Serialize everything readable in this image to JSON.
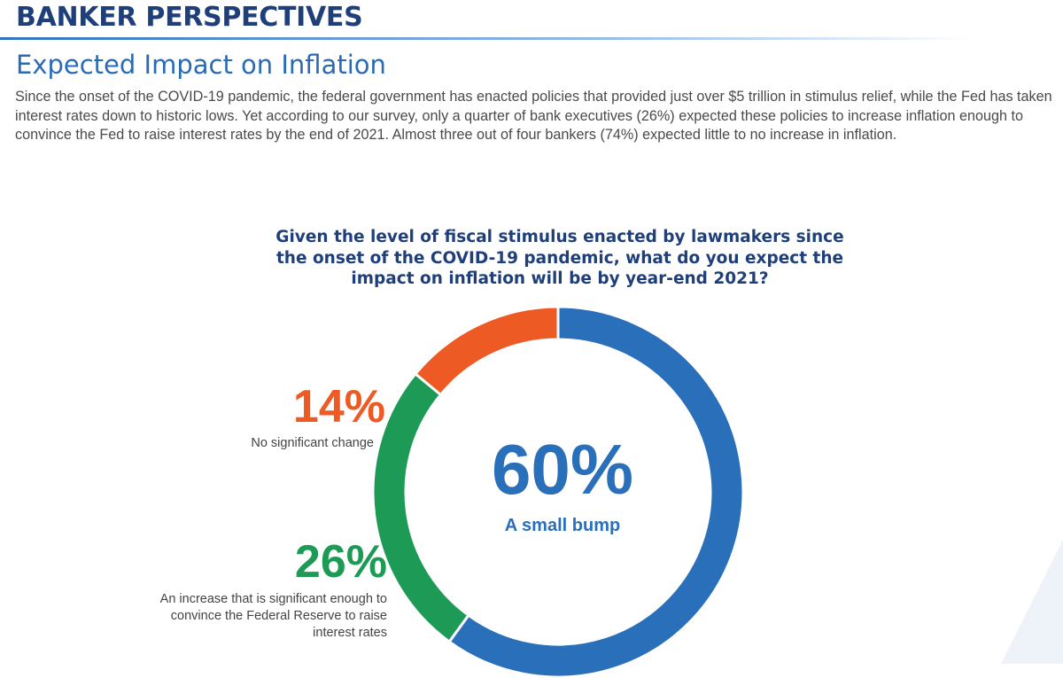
{
  "header": {
    "title": "BANKER PERSPECTIVES"
  },
  "section": {
    "title": "Expected Impact on Inflation",
    "intro": "Since the onset of the COVID-19 pandemic, the federal government has enacted policies that provided just over $5 trillion in stimulus relief, while the Fed has taken interest rates down to historic lows. Yet according to our survey, only a quarter of bank executives (26%) expected these policies to increase inflation enough to convince the Fed to raise interest rates by the end of 2021. Almost three out of four bankers (74%) expected little to no increase in inflation."
  },
  "chart_data": {
    "type": "pie",
    "title": "Given the level of fiscal stimulus enacted by lawmakers since the onset of the COVID-19 pandemic, what do you expect the impact on inflation will be by year-end 2021?",
    "donut": true,
    "slices": [
      {
        "label": "A small bump",
        "value": 60,
        "display": "60%",
        "color": "#2a6fba"
      },
      {
        "label": "An increase that is significant enough to convince the Federal Reserve to raise interest rates",
        "value": 26,
        "display": "26%",
        "color": "#1d9a55"
      },
      {
        "label": "No significant change",
        "value": 14,
        "display": "14%",
        "color": "#ee5a24"
      }
    ]
  }
}
